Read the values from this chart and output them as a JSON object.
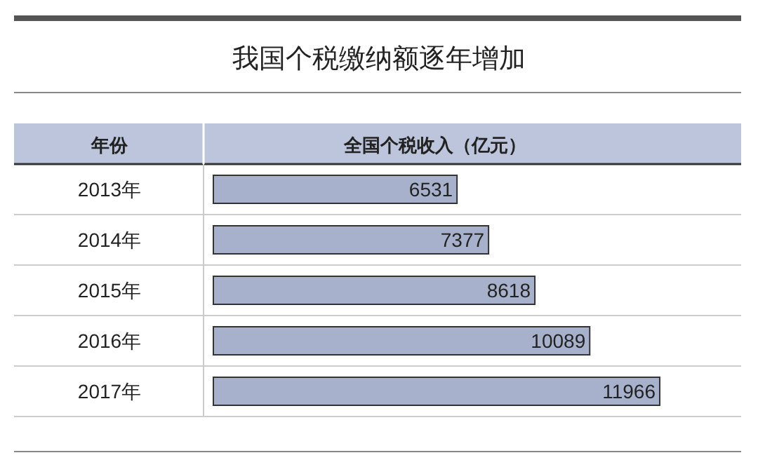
{
  "chart_data": {
    "type": "bar",
    "orientation": "horizontal",
    "title": "我国个税缴纳额逐年增加",
    "ylabel": "年份",
    "xlabel": "全国个税收入（亿元）",
    "categories": [
      "2013年",
      "2014年",
      "2015年",
      "2016年",
      "2017年"
    ],
    "values": [
      6531,
      7377,
      8618,
      10089,
      11966
    ],
    "color": "#a7b1cc",
    "data_labels": true,
    "grid": "y"
  }
}
